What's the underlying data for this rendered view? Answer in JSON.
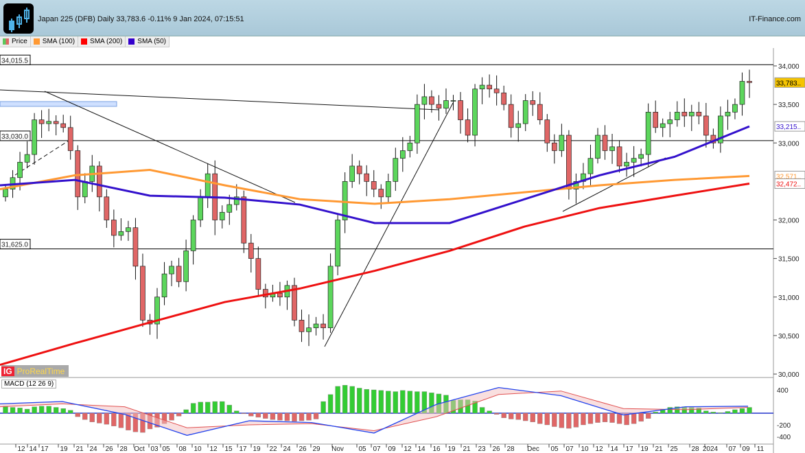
{
  "header": {
    "title": "Japan 225 (DFB) Daily 33,783.6 -0.11% 9 Jan 2024, 07:15:51",
    "brand": "IT-Finance.com"
  },
  "legend": [
    {
      "label": "Price",
      "color": "#5cc85c"
    },
    {
      "label": "SMA (100)",
      "color": "#ff9933"
    },
    {
      "label": "SMA (200)",
      "color": "#ff0000"
    },
    {
      "label": "SMA (50)",
      "color": "#3300cc"
    }
  ],
  "badge": {
    "ig": "IG",
    "name": "ProRealTime"
  },
  "colors": {
    "up": "#5cd65c",
    "down": "#e06666",
    "sma50": "#3311cc",
    "sma100": "#ff9933",
    "sma200": "#ee1111",
    "last": "#f5c400"
  },
  "chart_data": {
    "type": "candlestick",
    "ylim": [
      30000,
      34200
    ],
    "yticks": [
      "34,000",
      "33,500",
      "33,000",
      "32,000",
      "31,500",
      "31,000",
      "30,500",
      "30,000"
    ],
    "ytick_values": [
      34000,
      33500,
      33000,
      32000,
      31500,
      31000,
      30500,
      30000
    ],
    "xticks": [
      "12",
      "14",
      "17",
      "19",
      "21",
      "24",
      "26",
      "28",
      "Oct",
      "03",
      "05",
      "08",
      "10",
      "12",
      "15",
      "17",
      "19",
      "22",
      "24",
      "26",
      "29",
      "Nov",
      "05",
      "07",
      "09",
      "12",
      "14",
      "16",
      "19",
      "21",
      "23",
      "26",
      "28",
      "Dec",
      "05",
      "07",
      "10",
      "12",
      "14",
      "17",
      "19",
      "21",
      "25",
      "28",
      "2024",
      "07",
      "09",
      "11"
    ],
    "hlines": [
      {
        "value": 34015.5,
        "label": "34,015.5"
      },
      {
        "value": 33030.0,
        "label": "33,030.0"
      },
      {
        "value": 31625.0,
        "label": "31,625.0"
      }
    ],
    "closes": [
      32400,
      32550,
      32750,
      32850,
      33300,
      33250,
      33280,
      33250,
      33200,
      32900,
      32300,
      32500,
      32700,
      32300,
      32000,
      31800,
      31850,
      31900,
      31400,
      30700,
      30650,
      31000,
      31300,
      31400,
      31200,
      31600,
      32000,
      32300,
      32600,
      32000,
      32100,
      32200,
      32300,
      31700,
      31500,
      31100,
      31000,
      31050,
      31000,
      31150,
      30700,
      30550,
      30600,
      30650,
      30600,
      31400,
      32000,
      32500,
      32700,
      32600,
      32500,
      32400,
      32300,
      32500,
      32800,
      32900,
      33000,
      33500,
      33600,
      33500,
      33450,
      33550,
      33550,
      33300,
      33100,
      33700,
      33750,
      33700,
      33650,
      33500,
      33200,
      33250,
      33550,
      33500,
      33300,
      33000,
      32900,
      33100,
      32400,
      32500,
      32600,
      32800,
      33100,
      32900,
      32950,
      32700,
      32750,
      32800,
      32850,
      33400,
      33200,
      33250,
      33300,
      33400,
      33350,
      33400,
      33350,
      33100,
      33000,
      33350,
      33400,
      33500,
      33800,
      33783.6
    ],
    "sma50": [
      32450,
      32520,
      32315,
      32290,
      32200,
      31960,
      31960,
      32270,
      32580,
      32820,
      33215
    ],
    "sma100": [
      32400,
      32580,
      32650,
      32450,
      32270,
      32210,
      32270,
      32360,
      32450,
      32520,
      32571
    ],
    "sma200": [
      30120,
      30400,
      30670,
      30935,
      31110,
      31340,
      31600,
      31915,
      32155,
      32315,
      32472
    ],
    "last_labels": {
      "price": "33,783..",
      "sma50": "33,215..",
      "sma100": "32,571..",
      "sma200": "32,472.."
    },
    "macd": {
      "label": "MACD (12 26 9)",
      "yticks": [
        "400",
        "-200",
        "-400"
      ],
      "ytick_values": [
        400,
        -200,
        -400
      ],
      "histogram": [
        120,
        100,
        90,
        70,
        110,
        120,
        120,
        100,
        80,
        50,
        -60,
        -110,
        -150,
        -170,
        -190,
        -220,
        -250,
        -290,
        -320,
        -330,
        -270,
        -240,
        -180,
        -120,
        -50,
        60,
        170,
        190,
        190,
        200,
        200,
        140,
        40,
        -10,
        -50,
        -70,
        -90,
        -110,
        -120,
        -130,
        -140,
        -130,
        -120,
        -100,
        200,
        320,
        460,
        480,
        460,
        430,
        410,
        400,
        390,
        380,
        370,
        390,
        380,
        370,
        370,
        350,
        330,
        310,
        220,
        230,
        230,
        210,
        100,
        40,
        -20,
        -80,
        -100,
        -110,
        -130,
        -150,
        -180,
        -200,
        -230,
        -250,
        -260,
        -240,
        -200,
        -180,
        -160,
        -150,
        -160,
        -180,
        -200,
        -180,
        -140,
        -90,
        20,
        60,
        100,
        110,
        110,
        100,
        90,
        40,
        20,
        10,
        30,
        60,
        80,
        100
      ],
      "macd_line": [
        160,
        200,
        -20,
        -380,
        -130,
        -160,
        -340,
        150,
        440,
        300,
        -30,
        110,
        120
      ],
      "signal_line": [
        110,
        160,
        110,
        -250,
        -200,
        -180,
        -300,
        -60,
        320,
        380,
        80,
        60,
        100
      ]
    }
  }
}
